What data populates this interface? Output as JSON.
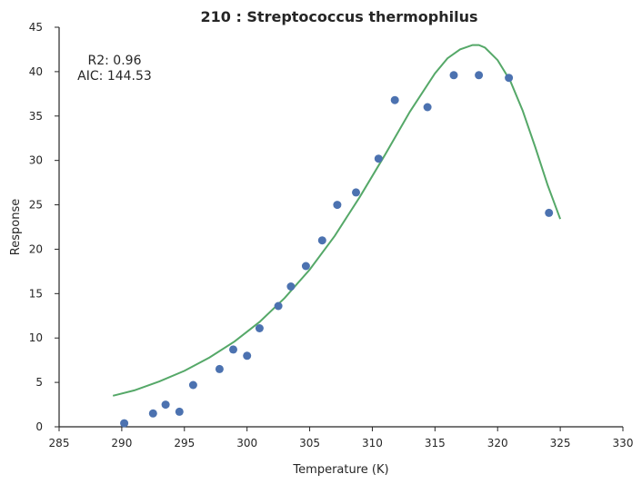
{
  "chart_data": {
    "type": "scatter",
    "title": "210 : Streptococcus thermophilus",
    "xlabel": "Temperature (K)",
    "ylabel": "Response",
    "xlim": [
      285,
      330
    ],
    "ylim": [
      0,
      45
    ],
    "xticks": [
      285,
      290,
      295,
      300,
      305,
      310,
      315,
      320,
      325,
      330
    ],
    "yticks": [
      0,
      5,
      10,
      15,
      20,
      25,
      30,
      35,
      40,
      45
    ],
    "grid": false,
    "annotations": [
      "R2: 0.96",
      "AIC: 144.53"
    ],
    "points_color": "#4c72b0",
    "fit_color": "#55a868",
    "points": {
      "x": [
        290.2,
        292.5,
        293.5,
        294.6,
        295.7,
        297.8,
        298.9,
        300.0,
        301.0,
        302.5,
        303.5,
        304.7,
        306.0,
        307.2,
        308.7,
        310.5,
        311.8,
        314.4,
        316.5,
        318.5,
        320.9,
        324.1
      ],
      "y": [
        0.4,
        1.5,
        2.5,
        1.7,
        4.7,
        6.5,
        8.7,
        8.0,
        11.1,
        13.6,
        15.8,
        18.1,
        21.0,
        25.0,
        26.4,
        30.2,
        36.8,
        36.0,
        39.6,
        39.6,
        39.3,
        24.1
      ]
    },
    "fit_line": {
      "x": [
        289.3,
        291.0,
        293.0,
        295.0,
        297.0,
        299.0,
        301.0,
        303.0,
        305.0,
        307.0,
        309.0,
        311.0,
        313.0,
        315.0,
        316.0,
        317.0,
        318.0,
        318.5,
        319.0,
        320.0,
        321.0,
        322.0,
        323.0,
        324.0,
        325.0
      ],
      "y": [
        3.5,
        4.1,
        5.1,
        6.3,
        7.8,
        9.6,
        11.8,
        14.5,
        17.7,
        21.5,
        25.9,
        30.6,
        35.5,
        39.8,
        41.5,
        42.5,
        43.0,
        43.0,
        42.7,
        41.3,
        39.0,
        35.6,
        31.5,
        27.2,
        23.4
      ]
    }
  }
}
